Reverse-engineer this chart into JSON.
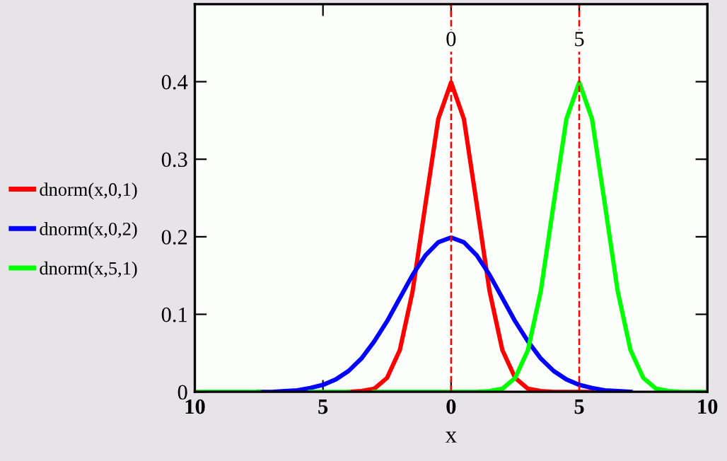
{
  "chart_data": {
    "type": "line",
    "xlabel": "x",
    "x": [
      -10,
      -9.5,
      -9,
      -8.5,
      -8,
      -7.5,
      -7,
      -6.5,
      -6,
      -5.5,
      -5,
      -4.5,
      -4,
      -3.5,
      -3,
      -2.5,
      -2,
      -1.5,
      -1,
      -0.5,
      0,
      0.5,
      1,
      1.5,
      2,
      2.5,
      3,
      3.5,
      4,
      4.5,
      5,
      5.5,
      6,
      6.5,
      7,
      7.5,
      8,
      8.5,
      9,
      9.5,
      10
    ],
    "series": [
      {
        "name": "dnorm(x,0,1)",
        "color": "#ff0000",
        "values": [
          null,
          null,
          null,
          null,
          null,
          null,
          null,
          null,
          null,
          null,
          null,
          null,
          0,
          0.001,
          0.004,
          0.018,
          0.054,
          0.13,
          0.242,
          0.352,
          0.399,
          0.352,
          0.242,
          0.13,
          0.054,
          0.018,
          0.004,
          0.001,
          0,
          0,
          0,
          0,
          null,
          null,
          null,
          null,
          null,
          null,
          null,
          null,
          null
        ]
      },
      {
        "name": "dnorm(x,0,2)",
        "color": "#0000ff",
        "values": [
          null,
          null,
          null,
          null,
          null,
          0,
          0,
          0.001,
          0.002,
          0.005,
          0.009,
          0.016,
          0.027,
          0.043,
          0.065,
          0.091,
          0.121,
          0.151,
          0.176,
          0.193,
          0.199,
          0.193,
          0.176,
          0.151,
          0.121,
          0.091,
          0.065,
          0.043,
          0.027,
          0.016,
          0.009,
          0.005,
          0.002,
          0.001,
          0,
          null,
          null,
          null,
          null,
          null,
          null
        ]
      },
      {
        "name": "dnorm(x,5,1)",
        "color": "#00ff00",
        "values": [
          0,
          0,
          0,
          0,
          0,
          0,
          null,
          null,
          null,
          0,
          0,
          0,
          0,
          null,
          0,
          0,
          0,
          0,
          0,
          0,
          0,
          0,
          0,
          0.001,
          0.004,
          0.018,
          0.054,
          0.13,
          0.242,
          0.352,
          0.399,
          0.352,
          0.242,
          0.13,
          0.054,
          0.018,
          0.004,
          0.001,
          0,
          0,
          0
        ]
      }
    ],
    "xlim": [
      -10,
      10
    ],
    "ylim": [
      0,
      0.5
    ],
    "xticks": [
      {
        "value": -10,
        "label": "10"
      },
      {
        "value": -5,
        "label": "5"
      },
      0,
      5,
      10
    ],
    "yticks": [
      0,
      0.1,
      0.2,
      0.3,
      0.4
    ],
    "ref_lines": [
      {
        "axis": "x",
        "value": 0,
        "label": "0",
        "color": "#ff0000",
        "line_style": "dashed"
      },
      {
        "axis": "x",
        "value": 5,
        "label": "5",
        "color": "#ff0000",
        "line_style": "dashed"
      }
    ],
    "legend": "left",
    "grid": false,
    "marker": "none",
    "line_style": "solid"
  }
}
